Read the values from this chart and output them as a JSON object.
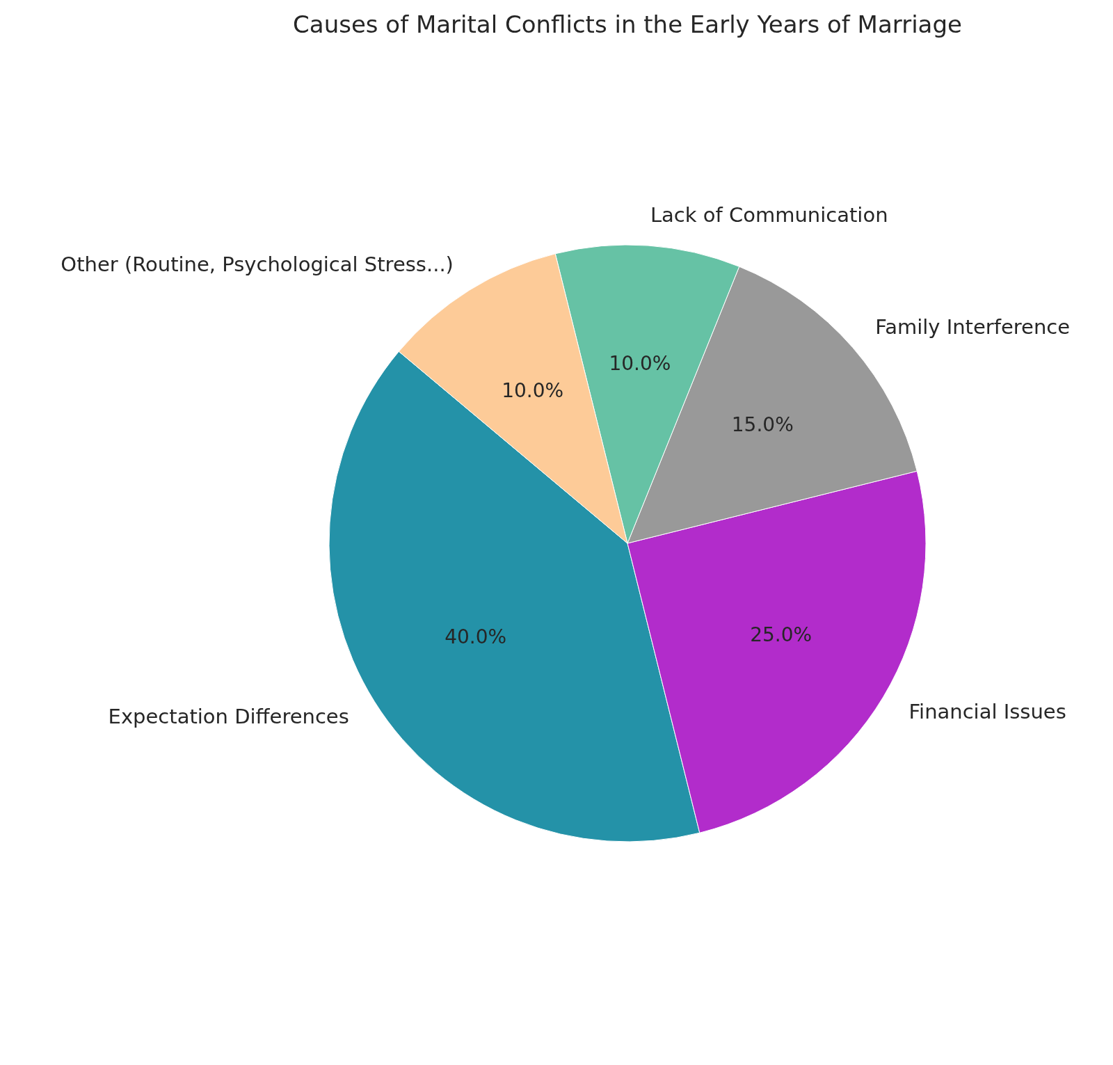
{
  "chart_data": {
    "type": "pie",
    "title": "Causes of Marital Conflicts in the Early Years of Marriage",
    "categories": [
      "Expectation Differences",
      "Financial Issues",
      "Family Interference",
      "Lack of Communication",
      "Other (Routine, Psychological Stress...)"
    ],
    "values": [
      40,
      25,
      15,
      10,
      10
    ],
    "colors": [
      "#2492a8",
      "#b22ccb",
      "#999999",
      "#66c2a5",
      "#fdcb98"
    ],
    "value_labels": [
      "40.0%",
      "25.0%",
      "15.0%",
      "10.0%",
      "10.0%"
    ]
  }
}
